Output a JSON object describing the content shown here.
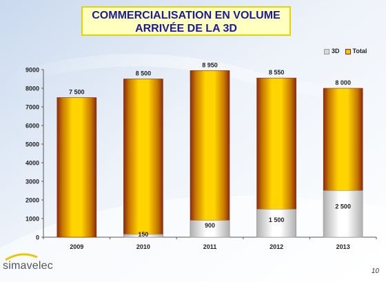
{
  "slide": {
    "title_line1": "COMMERCIALISATION EN VOLUME",
    "title_line2": "ARRIVÉE DE LA 3D",
    "page_number": "10",
    "logo_text": "simavelec"
  },
  "colors": {
    "total": "#f5c400",
    "total_edge": "#8a2a10",
    "three_d": "#d9d9d9",
    "title_text": "#1a1a9a"
  },
  "chart_data": {
    "type": "bar",
    "stacked": true,
    "categories": [
      "2009",
      "2010",
      "2011",
      "2012",
      "2013"
    ],
    "series": [
      {
        "name": "3D",
        "values": [
          0,
          150,
          900,
          1500,
          2500
        ],
        "labels": [
          "",
          "150",
          "900",
          "1 500",
          "2 500"
        ]
      },
      {
        "name": "Total",
        "values": [
          7500,
          8500,
          8950,
          8550,
          8000
        ],
        "labels": [
          "7 500",
          "8 500",
          "8 950",
          "8 550",
          "8 000"
        ]
      }
    ],
    "ylim": [
      0,
      9000
    ],
    "yticks": [
      "0",
      "1000",
      "2000",
      "3000",
      "4000",
      "5000",
      "6000",
      "7000",
      "8000",
      "9000"
    ],
    "legend_position": "top-right",
    "grid": false
  }
}
